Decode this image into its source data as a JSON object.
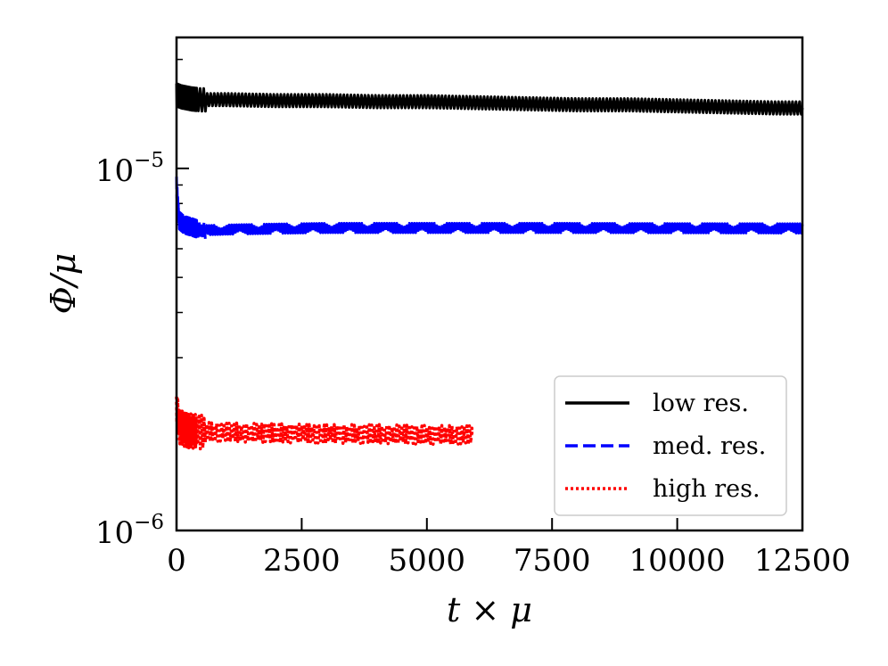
{
  "chart_data": {
    "type": "line",
    "title": "",
    "xlabel": "t × μ",
    "ylabel": "Φ/μ",
    "xlim": [
      0,
      12500
    ],
    "ylim": [
      1e-06,
      2.3e-05
    ],
    "yscale": "log",
    "grid": false,
    "legend_position": "bottom-right",
    "x_ticks": [
      0,
      2500,
      5000,
      7500,
      10000,
      12500
    ],
    "x_tick_labels": [
      "0",
      "2500",
      "5000",
      "7500",
      "10000",
      "12500"
    ],
    "y_major_ticks": [
      1e-06,
      1e-05
    ],
    "y_tick_labels": [
      {
        "base": "10",
        "exp": "−6"
      },
      {
        "base": "10",
        "exp": "−5"
      }
    ],
    "y_minor_ticks": [
      2e-06,
      3e-06,
      4e-06,
      5e-06,
      6e-06,
      7e-06,
      8e-06,
      9e-06,
      2e-05
    ],
    "series": [
      {
        "name": "low res.",
        "color": "#000000",
        "style": "solid",
        "x": [
          0,
          100,
          300,
          500,
          1000,
          2000,
          3000,
          4000,
          5000,
          6000,
          7000,
          8000,
          9000,
          10000,
          11000,
          12000,
          12500
        ],
        "y": [
          1.6e-05,
          1.58e-05,
          1.56e-05,
          1.55e-05,
          1.55e-05,
          1.54e-05,
          1.54e-05,
          1.53e-05,
          1.53e-05,
          1.52e-05,
          1.51e-05,
          1.5e-05,
          1.5e-05,
          1.49e-05,
          1.48e-05,
          1.47e-05,
          1.47e-05
        ],
        "osc_amp": 0.04
      },
      {
        "name": "med. res.",
        "color": "#0000ff",
        "style": "dashed",
        "x": [
          0,
          50,
          150,
          300,
          500,
          1000,
          2000,
          3000,
          5000,
          7500,
          10000,
          12500
        ],
        "y": [
          9e-06,
          7.2e-06,
          7e-06,
          6.9e-06,
          6.75e-06,
          6.78e-06,
          6.82e-06,
          6.85e-06,
          6.85e-06,
          6.85e-06,
          6.84e-06,
          6.83e-06
        ],
        "osc_amp": 0.03
      },
      {
        "name": "high res.",
        "color": "#ff0000",
        "style": "dotted",
        "x": [
          0,
          50,
          200,
          500,
          1000,
          2000,
          3000,
          4000,
          5000,
          5900
        ],
        "y": [
          2.2e-06,
          1.95e-06,
          1.9e-06,
          1.88e-06,
          1.87e-06,
          1.86e-06,
          1.85e-06,
          1.85e-06,
          1.84e-06,
          1.84e-06
        ],
        "osc_amp": 0.06
      }
    ]
  }
}
